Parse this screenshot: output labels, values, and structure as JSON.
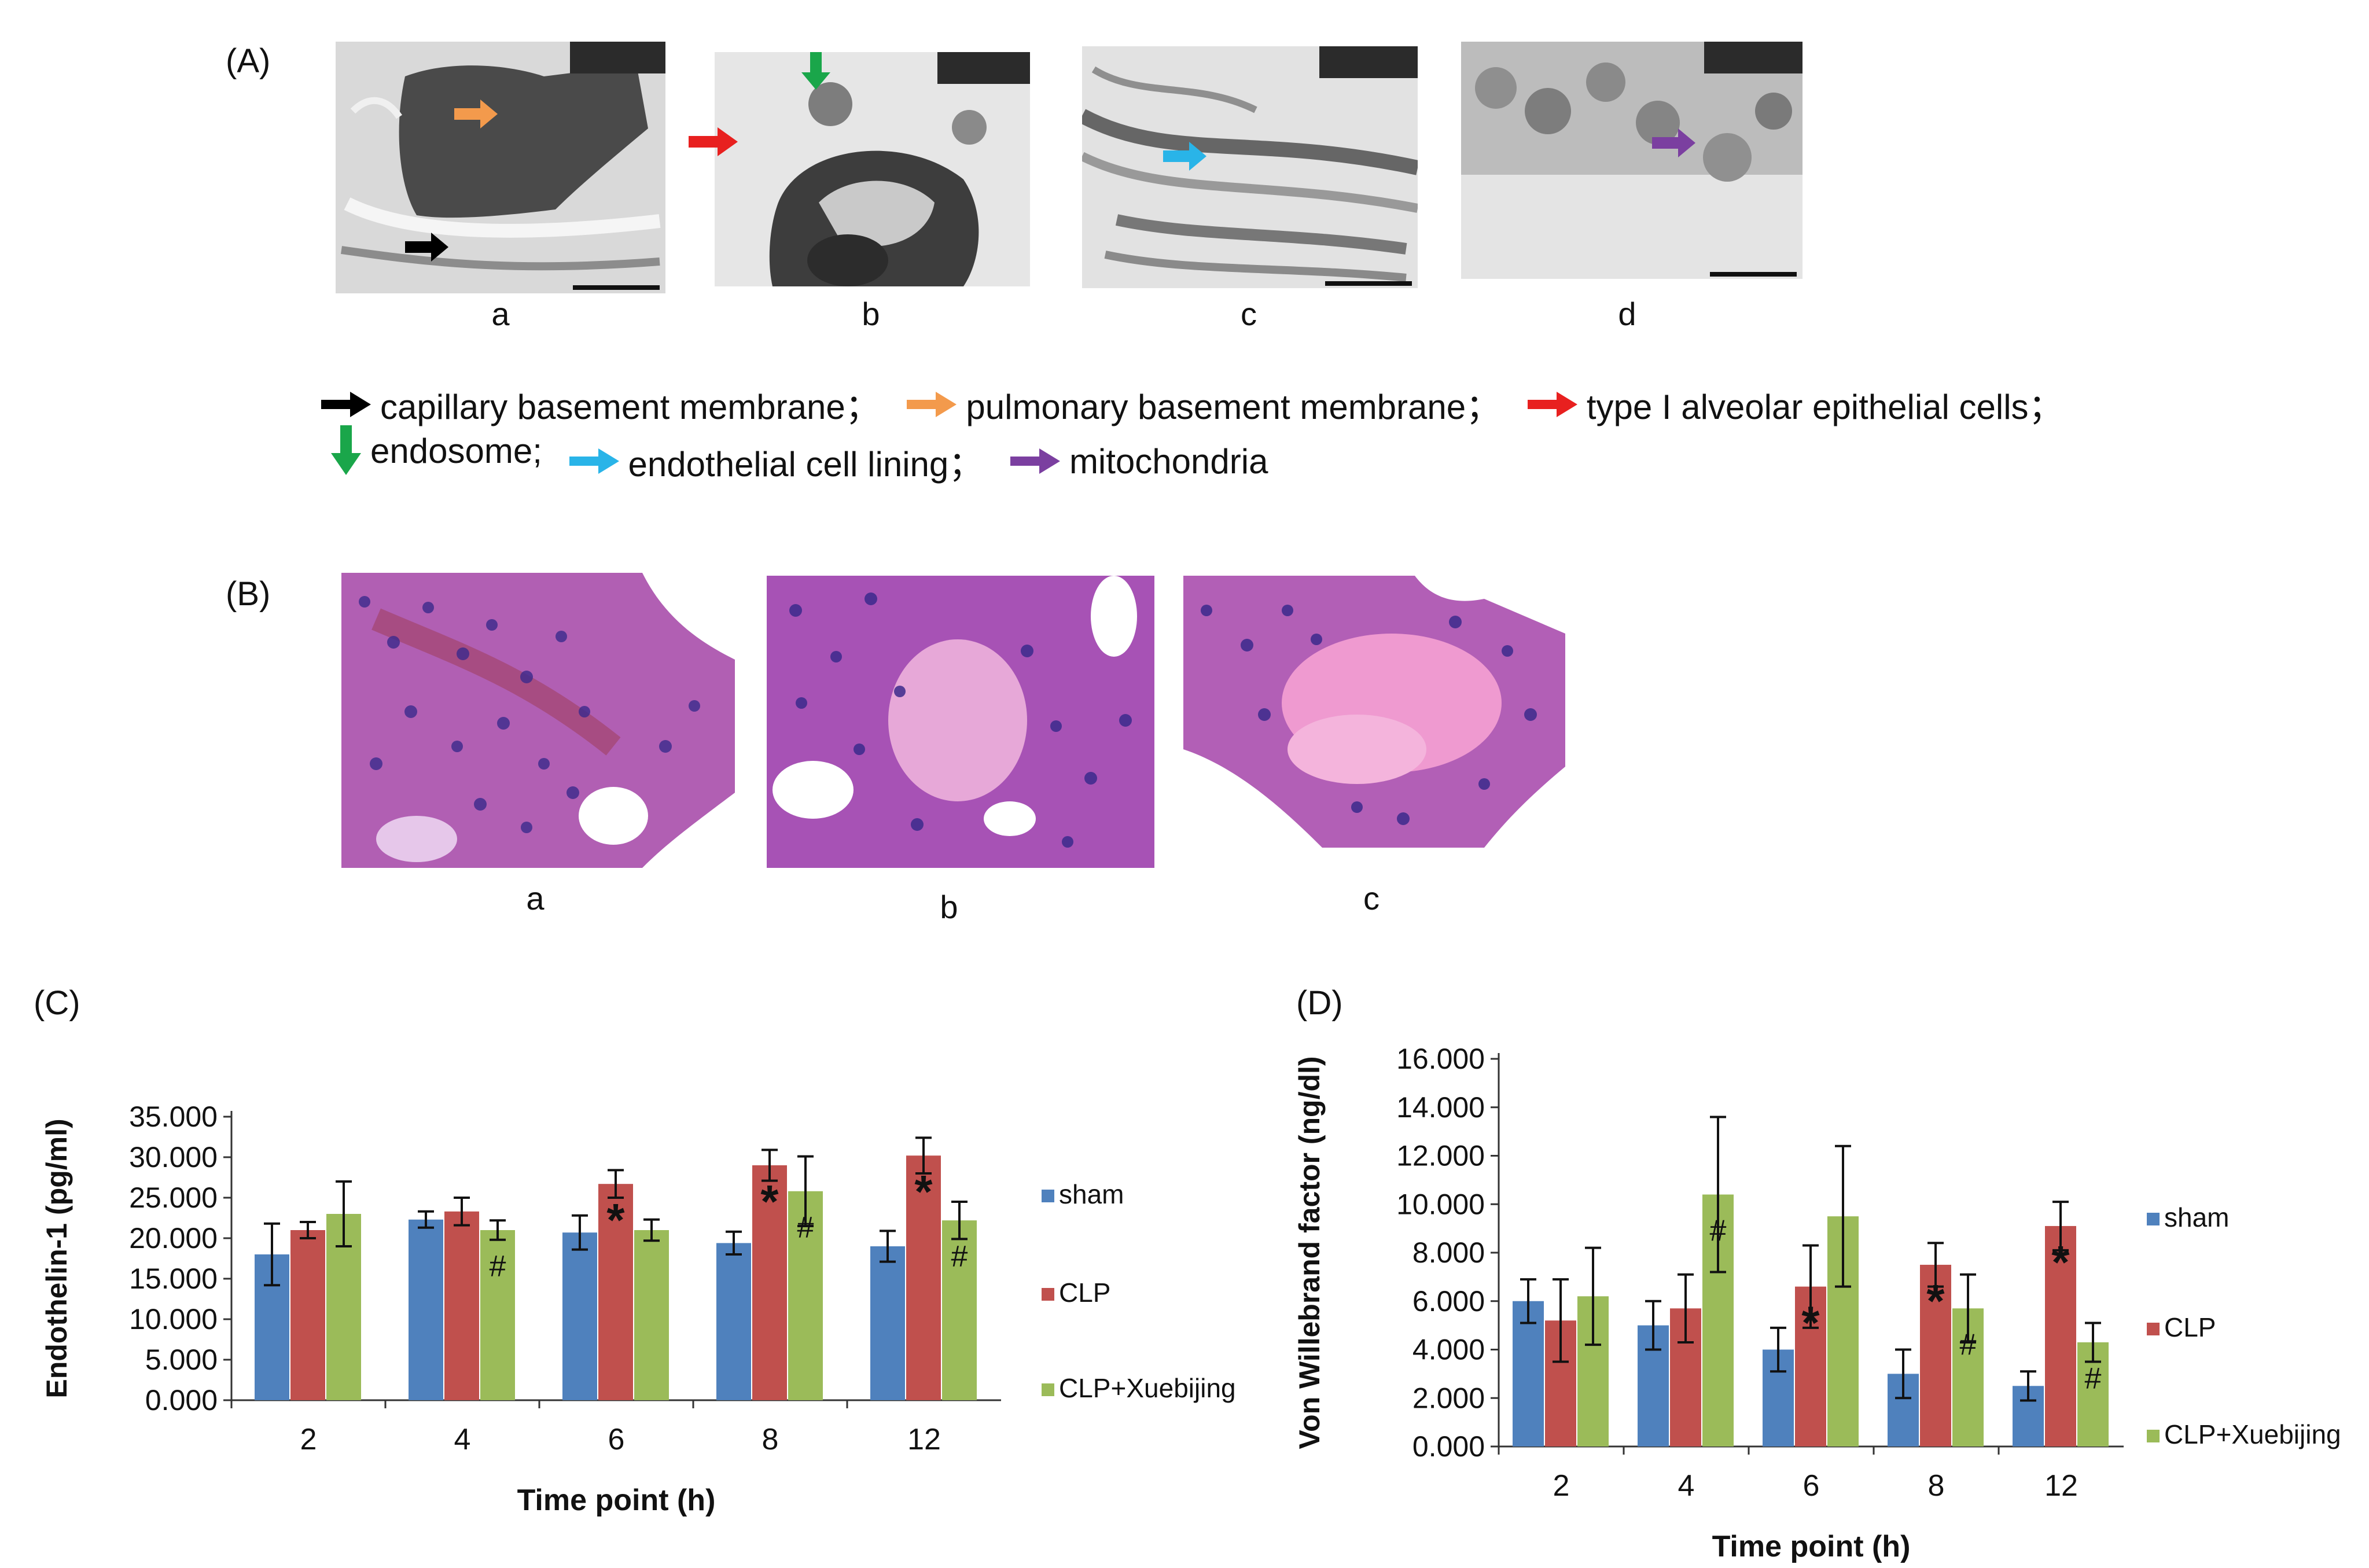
{
  "panel_labels": {
    "A": "(A)",
    "B": "(B)",
    "C": "(C)",
    "D": "(D)"
  },
  "micrographs_A": [
    {
      "label": "a"
    },
    {
      "label": "b"
    },
    {
      "label": "c"
    },
    {
      "label": "d"
    }
  ],
  "micrographs_B": [
    {
      "label": "a"
    },
    {
      "label": "b"
    },
    {
      "label": "c"
    }
  ],
  "arrow_legend": [
    {
      "text": "capillary basement membrane；",
      "color": "#000000",
      "direction": "right"
    },
    {
      "text": "pulmonary basement membrane；",
      "color": "#f39a4c",
      "direction": "right"
    },
    {
      "text": "type I alveolar epithelial cells；",
      "color": "#e8201f",
      "direction": "right"
    },
    {
      "text": "endosome;",
      "color": "#1aa64a",
      "direction": "down"
    },
    {
      "text": "endothelial cell lining；",
      "color": "#29b4e8",
      "direction": "right"
    },
    {
      "text": "mitochondria",
      "color": "#7b3fa0",
      "direction": "right"
    }
  ],
  "colors": {
    "sham": "#4f81bd",
    "CLP": "#c0504d",
    "CLP+Xuebijing": "#9bbb59"
  },
  "chart_data": [
    {
      "type": "bar",
      "panel": "(C)",
      "categories": [
        "2",
        "4",
        "6",
        "8",
        "12"
      ],
      "xlabel": "Time point (h)",
      "ylabel": "Endothelin-1 (pg/ml)",
      "ylim": [
        0,
        35
      ],
      "yticks": [
        "0.000",
        "5.000",
        "10.000",
        "15.000",
        "20.000",
        "25.000",
        "30.000",
        "35.000"
      ],
      "grid": false,
      "legend_position": "right",
      "series": [
        {
          "name": "sham",
          "values": [
            18.0,
            22.3,
            20.7,
            19.4,
            19.0
          ],
          "errors": [
            3.8,
            1.0,
            2.1,
            1.4,
            1.9
          ],
          "marks": [
            "",
            "",
            "",
            "",
            ""
          ]
        },
        {
          "name": "CLP",
          "values": [
            21.0,
            23.3,
            26.7,
            29.0,
            30.2
          ],
          "errors": [
            1.0,
            1.7,
            1.7,
            1.9,
            2.2
          ],
          "marks": [
            "",
            "",
            "*",
            "*",
            "*"
          ]
        },
        {
          "name": "CLP+Xuebijing",
          "values": [
            23.0,
            21.0,
            21.0,
            25.8,
            22.2
          ],
          "errors": [
            4.0,
            1.2,
            1.3,
            4.3,
            2.3
          ],
          "marks": [
            "",
            "#",
            "",
            "#",
            "#"
          ]
        }
      ]
    },
    {
      "type": "bar",
      "panel": "(D)",
      "categories": [
        "2",
        "4",
        "6",
        "8",
        "12"
      ],
      "xlabel": "Time point (h)",
      "ylabel": "Von Willebrand  factor (ng/dl)",
      "ylim": [
        0,
        16
      ],
      "yticks": [
        "0.000",
        "2.000",
        "4.000",
        "6.000",
        "8.000",
        "10.000",
        "12.000",
        "14.000",
        "16.000"
      ],
      "grid": false,
      "legend_position": "right",
      "series": [
        {
          "name": "sham",
          "values": [
            6.0,
            5.0,
            4.0,
            3.0,
            2.5
          ],
          "errors": [
            0.9,
            1.0,
            0.9,
            1.0,
            0.6
          ],
          "marks": [
            "",
            "",
            "",
            "",
            ""
          ]
        },
        {
          "name": "CLP",
          "values": [
            5.2,
            5.7,
            6.6,
            7.5,
            9.1
          ],
          "errors": [
            1.7,
            1.4,
            1.7,
            0.9,
            1.0
          ],
          "marks": [
            "",
            "",
            "*",
            "*",
            "*"
          ]
        },
        {
          "name": "CLP+Xuebijing",
          "values": [
            6.2,
            10.4,
            9.5,
            5.7,
            4.3
          ],
          "errors": [
            2.0,
            3.2,
            2.9,
            1.4,
            0.8
          ],
          "marks": [
            "",
            "#",
            "",
            "#",
            "#"
          ]
        }
      ]
    }
  ]
}
